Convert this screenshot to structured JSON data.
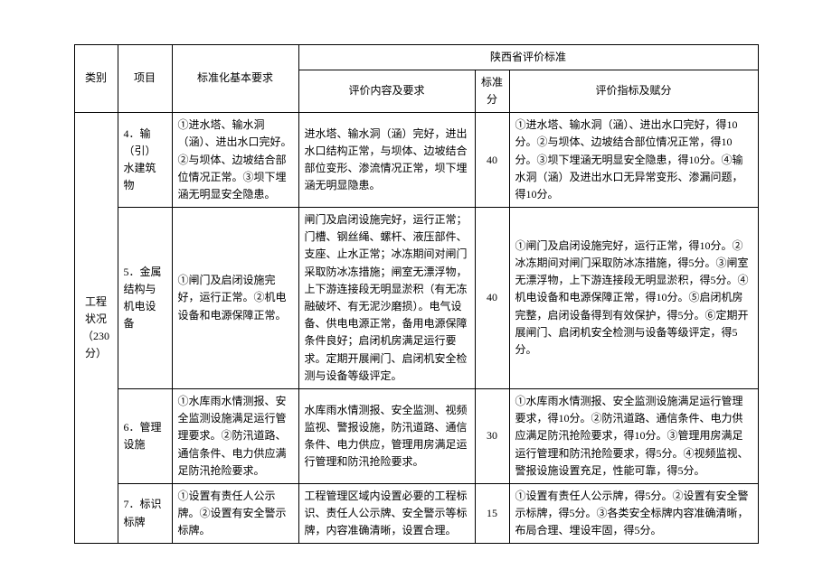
{
  "headers": {
    "category": "类别",
    "item": "项目",
    "basic_req": "标准化基本要求",
    "region": "陕西省评价标准",
    "content_req": "评价内容及要求",
    "standard_score": "标准分",
    "indicator": "评价指标及赋分"
  },
  "category_cell": "工程状况（230分）",
  "rows": [
    {
      "item": "4．输（引）水建筑物",
      "basic_req": "①进水塔、输水洞（涵）、进出水口完好。②与坝体、边坡结合部位情况正常。③坝下埋涵无明显安全隐患。",
      "content_req": "进水塔、输水洞（涵）完好，进出水口结构正常，与坝体、边坡结合部位变形、渗流情况正常，坝下埋涵无明显隐患。",
      "score": "40",
      "indicator": "①进水塔、输水洞（涵）、进出水口完好，得10分。②与坝体、边坡结合部位情况正常，得10分。③坝下埋涵无明显安全隐患，得10分。④输水洞（涵）及进出水口无异常变形、渗漏问题，得10分。"
    },
    {
      "item": "5．金属结构与机电设备",
      "basic_req": "①闸门及启闭设施完好，运行正常。②机电设备和电源保障正常。",
      "content_req": "闸门及启闭设施完好，运行正常；门槽、钢丝绳、螺杆、液压部件、支座、止水正常；冰冻期间对闸门采取防冰冻措施；闸室无漂浮物，上下游连接段无明显淤积（有无冻融破坏、有无泥沙磨损）。电气设备、供电电源正常，备用电源保障条件良好；启闭机房满足运行要求。定期开展闸门、启闭机安全检测与设备等级评定。",
      "score": "40",
      "indicator": "①闸门及启闭设施完好，运行正常，得10分。②冰冻期间对闸门采取防冰冻措施，得5分。③闸室无漂浮物，上下游连接段无明显淤积，得5分。④机电设备和电源保障正常，得10分。⑤启闭机房完整，启闭设备得到有效保护，得5分。⑥定期开展闸门、启闭机安全检测与设备等级评定，得5分。"
    },
    {
      "item": "6．管理设施",
      "basic_req": "①水库雨水情测报、安全监测设施满足运行管理要求。②防汛道路、通信条件、电力供应满足防汛抢险要求。",
      "content_req": "水库雨水情测报、安全监测、视频监视、警报设施，防汛道路、通信条件、电力供应，管理用房满足运行管理和防汛抢险要求。",
      "score": "30",
      "indicator": "①水库雨水情测报、安全监测设施满足运行管理要求，得10分。②防汛道路、通信条件、电力供应满足防汛抢险要求，得10分。③管理用房满足运行管理和防汛抢险要求，得5分。④视频监视、警报设施设置充足，性能可靠，得5分。"
    },
    {
      "item": "7．标识标牌",
      "basic_req": "①设置有责任人公示牌。②设置有安全警示标牌。",
      "content_req": "工程管理区域内设置必要的工程标识、责任人公示牌、安全警示等标牌，内容准确清晰，设置合理。",
      "score": "15",
      "indicator": "①设置有责任人公示牌，得5分。②设置有安全警示标牌，得5分。③各类安全标牌内容准确清晰，布局合理、埋设牢固，得5分。"
    }
  ]
}
